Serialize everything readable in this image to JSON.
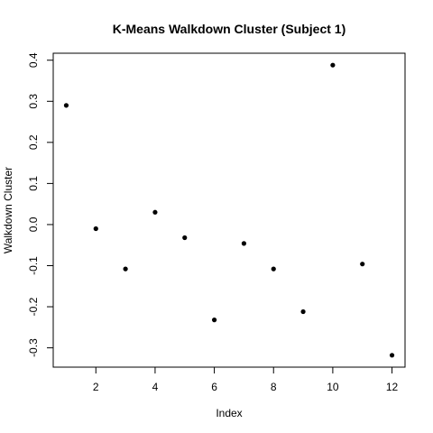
{
  "chart_data": {
    "type": "scatter",
    "title": "K-Means Walkdown Cluster (Subject 1)",
    "xlabel": "Index",
    "ylabel": "Walkdown Cluster",
    "x": [
      1,
      2,
      3,
      4,
      5,
      6,
      7,
      8,
      9,
      10,
      11,
      12
    ],
    "y": [
      0.29,
      -0.01,
      -0.108,
      0.03,
      -0.032,
      -0.232,
      -0.046,
      -0.108,
      -0.212,
      0.388,
      -0.096,
      -0.318
    ],
    "xlim": [
      0.56,
      12.44
    ],
    "ylim": [
      -0.347,
      0.417
    ],
    "xticks": [
      "2",
      "4",
      "6",
      "8",
      "10",
      "12"
    ],
    "yticks": [
      "-0.3",
      "-0.2",
      "-0.1",
      "0.0",
      "0.1",
      "0.2",
      "0.3",
      "0.4"
    ],
    "grid": false,
    "legend": "none",
    "marker_color": "#000000"
  }
}
